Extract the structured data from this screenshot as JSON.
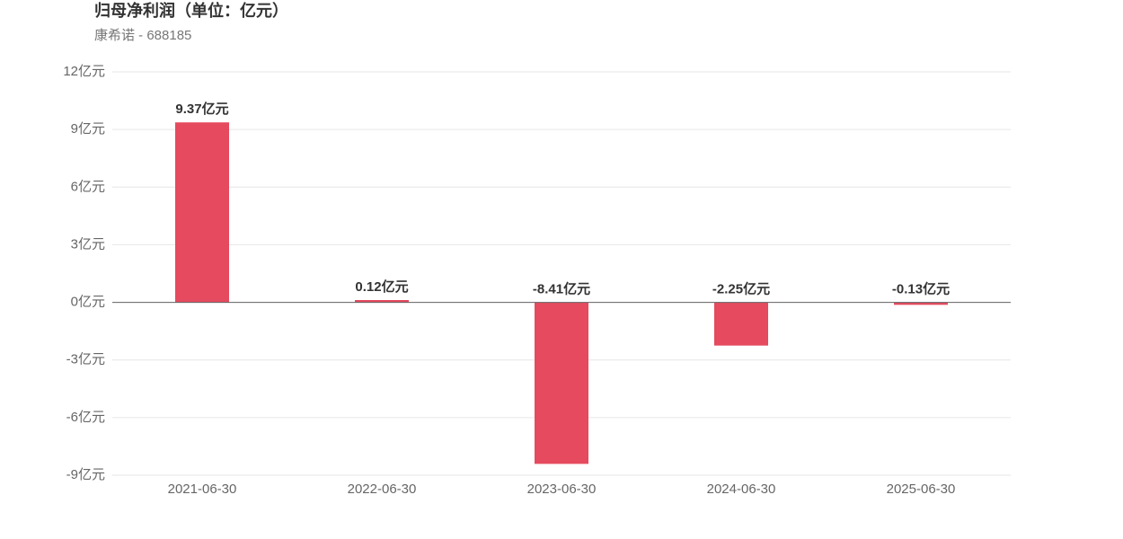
{
  "chart_data": {
    "type": "bar",
    "title": "归母净利润（单位：亿元）",
    "subtitle": "康希诺 - 688185",
    "categories": [
      "2021-06-30",
      "2022-06-30",
      "2023-06-30",
      "2024-06-30",
      "2025-06-30"
    ],
    "values": [
      9.37,
      0.12,
      -8.41,
      -2.25,
      -0.13
    ],
    "value_labels": [
      "9.37亿元",
      "0.12亿元",
      "-8.41亿元",
      "-2.25亿元",
      "-0.13亿元"
    ],
    "color": "#e54a5e",
    "ylim": [
      -9,
      12
    ],
    "yticks": [
      {
        "value": -9,
        "label": "-9亿元"
      },
      {
        "value": -6,
        "label": "-6亿元"
      },
      {
        "value": -3,
        "label": "-3亿元"
      },
      {
        "value": 0,
        "label": "0亿元"
      },
      {
        "value": 3,
        "label": "3亿元"
      },
      {
        "value": 6,
        "label": "6亿元"
      },
      {
        "value": 9,
        "label": "9亿元"
      },
      {
        "value": 12,
        "label": "12亿元"
      }
    ],
    "grid": true
  }
}
